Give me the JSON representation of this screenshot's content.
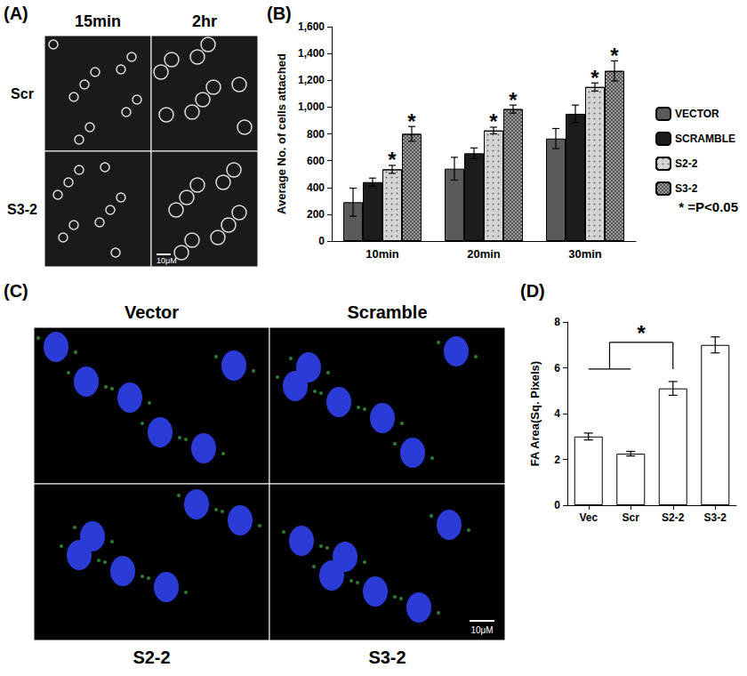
{
  "image_panels": [
    {
      "label": "(A)",
      "columns": [
        "15min",
        "2hr"
      ],
      "rows": [
        "Scr",
        "S3-2"
      ],
      "scale_bar": "10μM"
    },
    {
      "label": "(C)",
      "top_labels": [
        "Vector",
        "Scramble"
      ],
      "bottom_labels": [
        "S2-2",
        "S3-2"
      ],
      "scale_bar": "10μM"
    }
  ],
  "chart_data": [
    {
      "panel": "(B)",
      "type": "bar",
      "y_label": "Average No. of cells attached",
      "categories": [
        "10min",
        "20min",
        "30min"
      ],
      "series": [
        {
          "name": "VECTOR",
          "color": "#5a5a5a",
          "values": [
            290,
            540,
            765
          ],
          "errors": [
            105,
            85,
            75
          ],
          "significance": [
            null,
            null,
            null
          ]
        },
        {
          "name": "SCRAMBLE",
          "color": "#1c1c1c",
          "values": [
            440,
            655,
            950
          ],
          "errors": [
            30,
            40,
            65
          ],
          "significance": [
            null,
            null,
            null
          ]
        },
        {
          "name": "S2-2",
          "color": "#d4d4d4",
          "values": [
            535,
            825,
            1150
          ],
          "errors": [
            30,
            25,
            30
          ],
          "significance": [
            "*",
            "*",
            "*"
          ]
        },
        {
          "name": "S3-2",
          "color": "#9a9a9a",
          "values": [
            800,
            985,
            1270
          ],
          "errors": [
            55,
            30,
            75
          ],
          "significance": [
            "*",
            "*",
            "*"
          ]
        }
      ],
      "ylim": [
        0,
        1600
      ],
      "yticks": [
        0,
        200,
        400,
        600,
        800,
        1000,
        1200,
        1400,
        1600
      ],
      "grid": false,
      "legend": "right",
      "note": "* =P<0.05"
    },
    {
      "panel": "(D)",
      "type": "bar",
      "y_label": "FA Area(Sq. Pixels)",
      "categories": [
        "Vec",
        "Scr",
        "S2-2",
        "S3-2"
      ],
      "values": [
        3.0,
        2.25,
        5.1,
        7.0
      ],
      "errors": [
        0.15,
        0.1,
        0.3,
        0.35
      ],
      "color": "#ffffff",
      "ylim": [
        0,
        8
      ],
      "yticks": [
        0,
        2,
        4,
        6,
        8
      ],
      "grid": false,
      "comparisons": [
        {
          "groups": [
            "Vec",
            "Scr"
          ],
          "versus": "S2-2",
          "label": "*"
        }
      ]
    }
  ]
}
